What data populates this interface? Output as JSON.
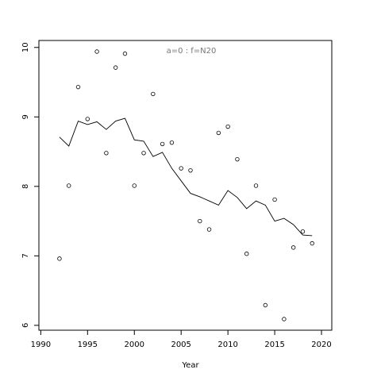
{
  "chart_data": {
    "type": "scatter",
    "annotation": "a=0  :  f=N20",
    "xlabel": "Year",
    "xlim": [
      1989.8,
      2021.1
    ],
    "xticks": [
      1990,
      1995,
      2000,
      2005,
      2010,
      2015,
      2020
    ],
    "ylim": [
      5.93,
      10.1
    ],
    "yticks": [
      6,
      7,
      8,
      9,
      10
    ],
    "series": [
      {
        "mode": "points",
        "color": "#000000",
        "x": [
          1992,
          1993,
          1994,
          1995,
          1996,
          1997,
          1998,
          1999,
          2000,
          2001,
          2002,
          2003,
          2004,
          2005,
          2006,
          2007,
          2008,
          2009,
          2010,
          2011,
          2012,
          2013,
          2014,
          2015,
          2016,
          2017,
          2018,
          2019
        ],
        "values": [
          6.96,
          8.01,
          9.43,
          8.97,
          9.94,
          8.48,
          9.71,
          9.91,
          8.01,
          8.48,
          9.33,
          8.61,
          8.63,
          8.26,
          8.23,
          7.5,
          7.38,
          8.77,
          8.86,
          8.39,
          7.03,
          8.01,
          6.29,
          7.81,
          6.09,
          7.12,
          7.35,
          7.18
        ]
      },
      {
        "mode": "line",
        "color": "#000000",
        "x": [
          1992,
          1993,
          1994,
          1995,
          1996,
          1997,
          1998,
          1999,
          2000,
          2001,
          2002,
          2003,
          2004,
          2005,
          2006,
          2007,
          2008,
          2009,
          2010,
          2011,
          2012,
          2013,
          2014,
          2015,
          2016,
          2017,
          2018,
          2019
        ],
        "values": [
          8.71,
          8.58,
          8.94,
          8.89,
          8.93,
          8.82,
          8.94,
          8.98,
          8.67,
          8.65,
          8.43,
          8.49,
          8.26,
          8.08,
          7.9,
          7.85,
          7.79,
          7.73,
          7.94,
          7.84,
          7.68,
          7.79,
          7.73,
          7.5,
          7.54,
          7.45,
          7.3,
          7.29
        ]
      }
    ]
  }
}
